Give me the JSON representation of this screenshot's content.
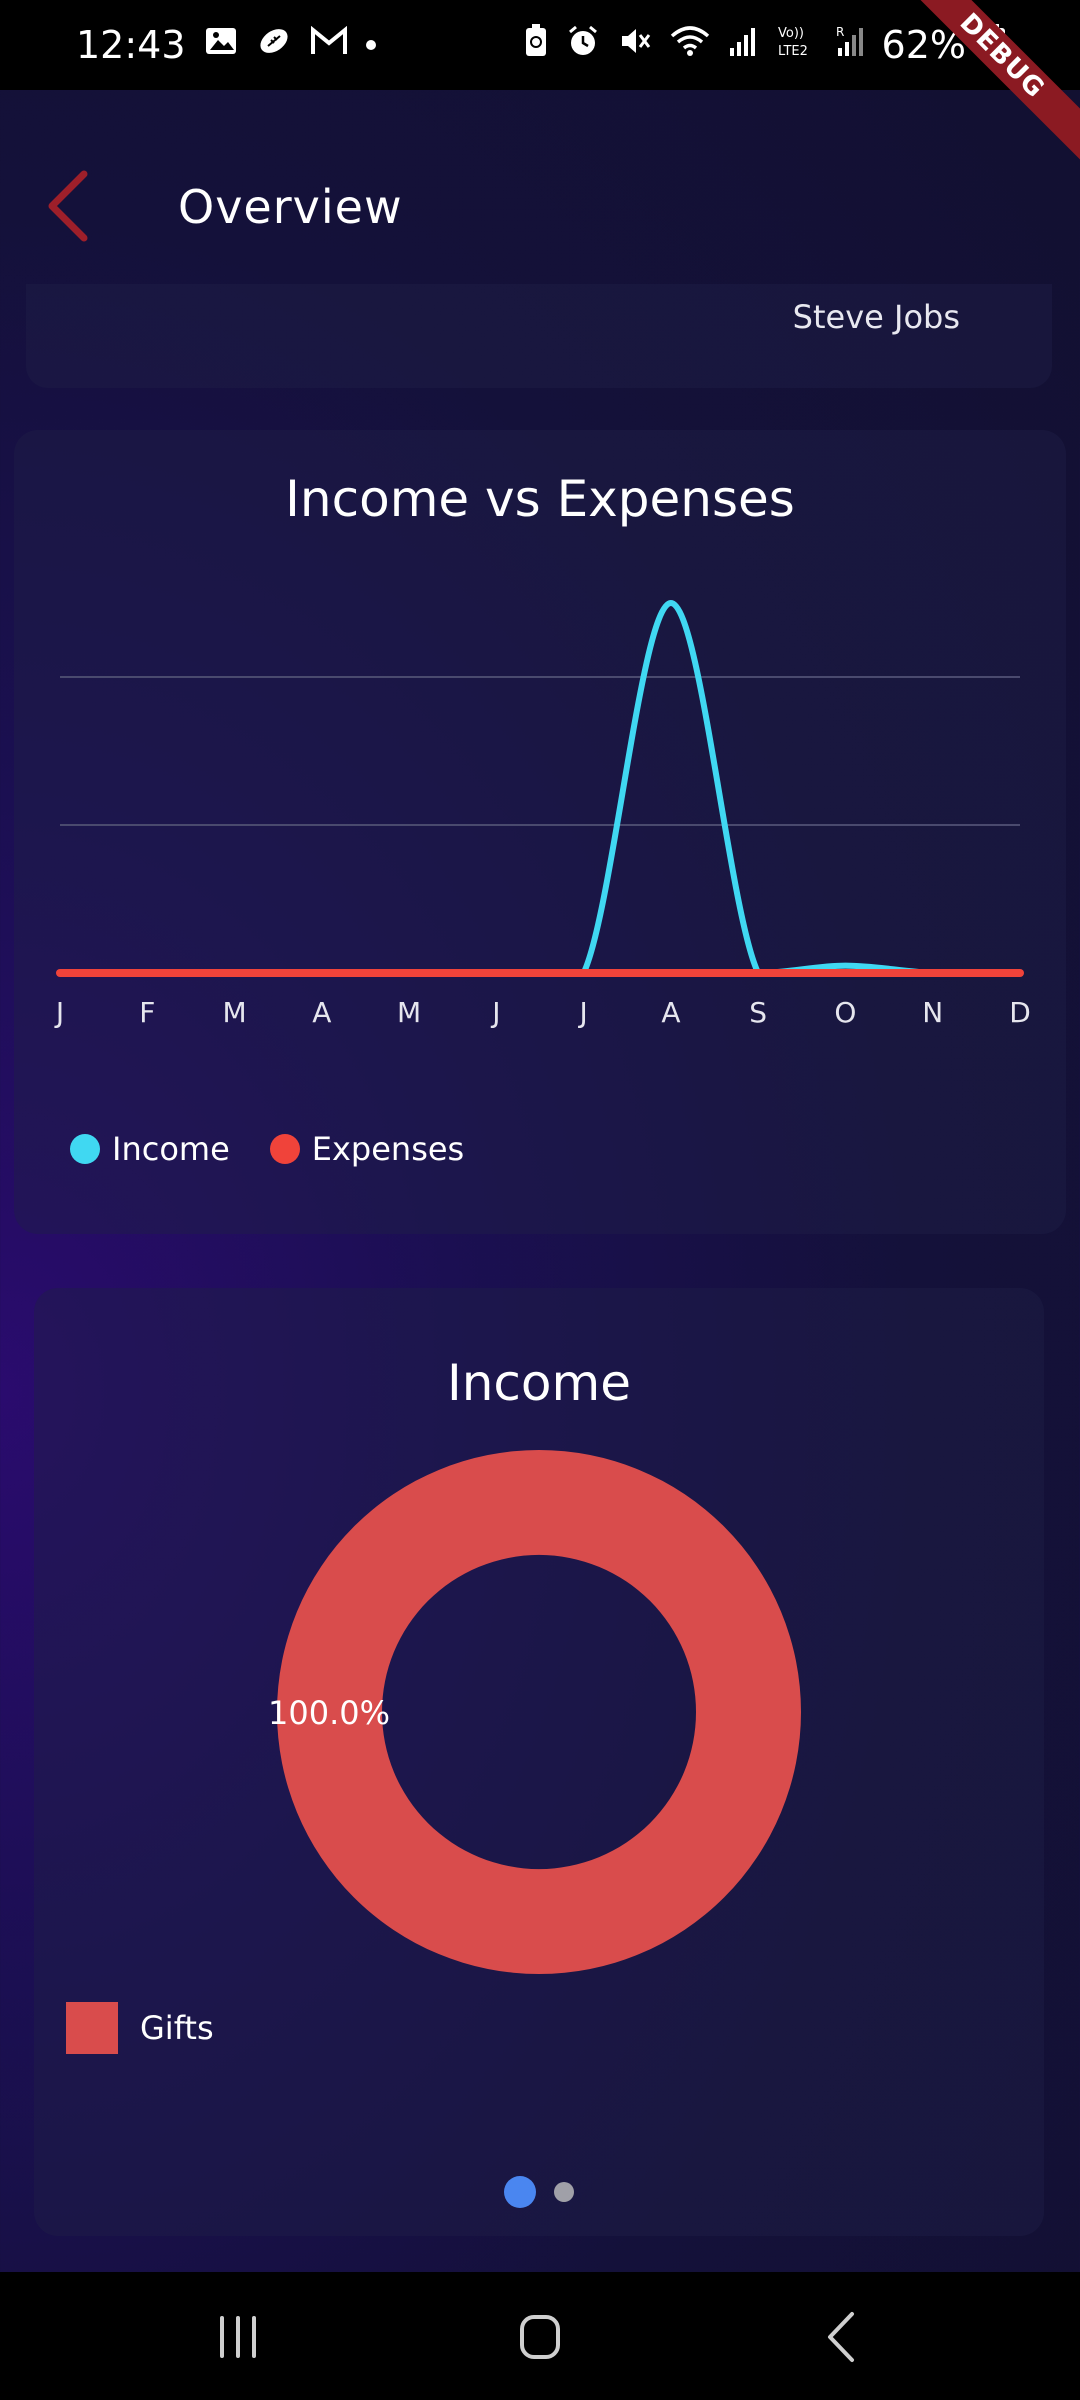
{
  "status_bar": {
    "time": "12:43",
    "battery": "62%",
    "debug_label": "DEBUG"
  },
  "app_bar": {
    "title": "Overview"
  },
  "profile": {
    "name": "Steve Jobs"
  },
  "colors": {
    "income": "#40d8f2",
    "expenses": "#f0433a",
    "gifts": "#d94c4c",
    "accent_back": "#9e1f2a",
    "indicator_active": "#4a86f0"
  },
  "chart_data": [
    {
      "type": "line",
      "title": "Income vs Expenses",
      "categories": [
        "J",
        "F",
        "M",
        "A",
        "M",
        "J",
        "J",
        "A",
        "S",
        "O",
        "N",
        "D"
      ],
      "series": [
        {
          "name": "Income",
          "values": [
            0,
            0,
            0,
            0,
            0,
            0,
            0,
            2.5,
            0,
            0.05,
            0,
            0
          ]
        },
        {
          "name": "Expenses",
          "values": [
            0,
            0,
            0,
            0,
            0,
            0,
            0,
            0,
            0,
            0,
            0,
            0
          ]
        }
      ],
      "ylim": [
        0,
        2.0
      ],
      "grid": true,
      "legend": "bottom-left"
    },
    {
      "type": "pie",
      "title": "Income",
      "slices": [
        {
          "name": "Gifts",
          "value": 100.0,
          "label": "100.0%"
        }
      ],
      "legend": "bottom-left"
    }
  ],
  "pagination": {
    "current": 1,
    "total": 2
  }
}
